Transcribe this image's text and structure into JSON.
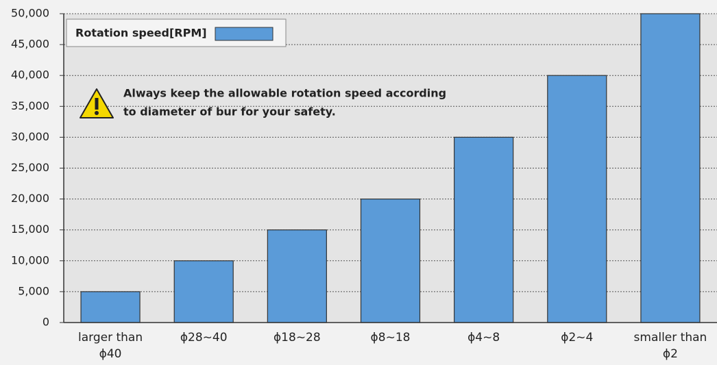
{
  "chart_data": {
    "type": "bar",
    "legend_label": "Rotation speed[RPM]",
    "annotation": [
      "Always keep the allowable rotation speed according",
      "to diameter of bur for your safety."
    ],
    "categories": [
      "larger than ϕ40",
      "ϕ28~40",
      "ϕ18~28",
      "ϕ8~18",
      "ϕ4~8",
      "ϕ2~4",
      "smaller than ϕ2"
    ],
    "values": [
      5000,
      10000,
      15000,
      20000,
      30000,
      40000,
      50000
    ],
    "color": "#5b9bd8",
    "ylim": [
      0,
      50000
    ],
    "yticks": [
      0,
      {
        "value": 5000,
        "label": "5,000"
      },
      {
        "value": 10000,
        "label": "10,000"
      },
      {
        "value": 15000,
        "label": "15,000"
      },
      {
        "value": 20000,
        "label": "20,000"
      },
      {
        "value": 25000,
        "label": "25,000"
      },
      {
        "value": 30000,
        "label": "30,000"
      },
      {
        "value": 35000,
        "label": "35,000"
      },
      {
        "value": 40000,
        "label": "40,000"
      },
      {
        "value": 45000,
        "label": "45,000"
      },
      {
        "value": 50000,
        "label": "50,000"
      }
    ],
    "grid": true
  }
}
